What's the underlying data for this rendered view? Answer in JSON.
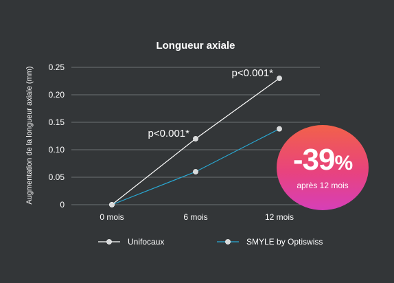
{
  "chart_data": {
    "type": "line",
    "title": "Longueur axiale",
    "xlabel": "",
    "ylabel": "Augmentation de la longueur axiale (mm)",
    "categories": [
      "0 mois",
      "6 mois",
      "12 mois"
    ],
    "ylim": [
      0,
      0.25
    ],
    "yticks": [
      "0",
      "0.05",
      "0.10",
      "0.15",
      "0.20",
      "0.25"
    ],
    "grid": true,
    "legend_position": "bottom",
    "series": [
      {
        "name": "Unifocaux",
        "values": [
          0,
          0.12,
          0.23
        ],
        "color": "#ffffff"
      },
      {
        "name": "SMYLE by Optiswiss",
        "values": [
          0,
          0.06,
          0.138
        ],
        "color": "#29a9d4"
      }
    ],
    "annotations": [
      {
        "text": "p<0.001*",
        "category": "6 mois",
        "series": "Unifocaux"
      },
      {
        "text": "p<0.001*",
        "category": "12 mois",
        "series": "Unifocaux"
      }
    ],
    "badge": {
      "value": "-39",
      "unit": "%",
      "subtitle": "après 12 mois"
    }
  }
}
